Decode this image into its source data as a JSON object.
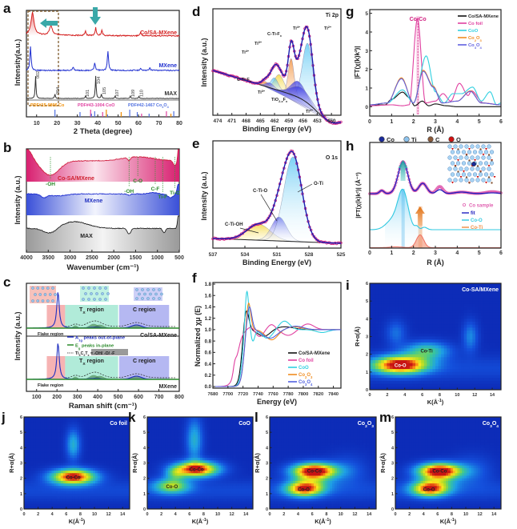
{
  "figure": {
    "panels": [
      "a",
      "b",
      "c",
      "d",
      "e",
      "f",
      "g",
      "h",
      "i",
      "j",
      "k",
      "l",
      "m"
    ]
  },
  "chart_data": [
    {
      "panel": "a",
      "type": "line",
      "title": "",
      "xlabel": "2 Theta (degree)",
      "ylabel": "Intensity(a.u.)",
      "xlim": [
        5,
        80
      ],
      "xticks": [
        "10",
        "20",
        "30",
        "40",
        "50",
        "60",
        "70",
        "80"
      ],
      "series": [
        {
          "name": "Co/SA-MXene",
          "color": "#d42020",
          "peaks": [
            [
              8,
              1.0
            ],
            [
              17,
              0.4
            ],
            [
              34,
              0.2
            ],
            [
              39,
              0.35
            ],
            [
              42,
              0.25
            ],
            [
              61,
              0.15
            ]
          ]
        },
        {
          "name": "MXene",
          "color": "#2030d0",
          "peaks": [
            [
              7,
              1.0
            ],
            [
              28,
              0.15
            ],
            [
              38.5,
              0.3
            ],
            [
              45,
              0.8
            ],
            [
              61,
              0.1
            ],
            [
              65.5,
              0.12
            ]
          ]
        },
        {
          "name": "MAX",
          "color": "#333333",
          "peaks": [
            [
              9.5,
              1.0
            ],
            [
              19,
              0.2
            ],
            [
              34,
              0.1
            ],
            [
              39,
              1.0
            ],
            [
              41.8,
              0.2
            ],
            [
              48.5,
              0.1
            ],
            [
              56,
              0.1
            ],
            [
              60.2,
              0.1
            ]
          ]
        }
      ],
      "hkl": [
        "002",
        "004",
        "101",
        "104",
        "105",
        "107",
        "109",
        "110"
      ],
      "references": [
        {
          "name": "PDF#15-0806 Co",
          "color": "#f08c00",
          "lines": [
            44.2,
            51.5,
            75.9
          ]
        },
        {
          "name": "PDF#43-1004 CoO",
          "color": "#e040a0",
          "lines": [
            36.5,
            42.4,
            61.5,
            73.7
          ]
        },
        {
          "name": "PDF#42-1467 Co3O4",
          "color": "#5070e0",
          "lines": [
            19,
            31.3,
            36.9,
            38.5,
            44.8,
            55.7,
            59.4,
            65.2,
            77.3
          ]
        }
      ]
    },
    {
      "panel": "b",
      "type": "area",
      "xlabel": "Wavenumber (cm⁻¹)",
      "ylabel": "Intensity (a.u.)",
      "xlim": [
        4000,
        500
      ],
      "xticks": [
        "4000",
        "3500",
        "3000",
        "2500",
        "2000",
        "1500",
        "1000",
        "500"
      ],
      "series": [
        {
          "name": "Co-SA/MXene",
          "color": "#d42060"
        },
        {
          "name": "MXene",
          "color": "#2040d0"
        },
        {
          "name": "MAX",
          "color": "#222222"
        }
      ],
      "annotations": [
        "-OH",
        "-OH",
        "C-O",
        "C-F",
        "Ti-F",
        "Ti-O"
      ]
    },
    {
      "panel": "c",
      "type": "line",
      "xlabel": "Raman shift (cm⁻¹)",
      "ylabel": "Intensity (a.u.)",
      "xlim": [
        50,
        800
      ],
      "xticks": [
        "100",
        "200",
        "300",
        "400",
        "500",
        "600",
        "700",
        "800"
      ],
      "series": [
        {
          "name": "Co/SA-MXene"
        },
        {
          "name": "MXene"
        }
      ],
      "regions": [
        "Flake region",
        "Tx region",
        "C region"
      ],
      "legend": [
        "A1g peaks out-of-plane",
        "Eg peaks in-plane",
        "Ti3C2Tx = -OH/ -O/ -F"
      ]
    },
    {
      "panel": "d",
      "type": "line",
      "title": "Ti 2p",
      "xlabel": "Binding Energy (eV)",
      "ylabel": "Intensity (a.u.)",
      "xlim": [
        475,
        448
      ],
      "xticks": [
        "474",
        "471",
        "468",
        "465",
        "462",
        "459",
        "456",
        "453",
        "450"
      ],
      "annotations": [
        "Ti4+",
        "Ti3+",
        "C-Ti-Fx",
        "Ti4+",
        "Ti2+",
        "C-Ti-Fx",
        "Ti3+",
        "TiO2-xFx",
        "Ti2+"
      ],
      "peaks": [
        455,
        458.5,
        461,
        464
      ]
    },
    {
      "panel": "e",
      "type": "line",
      "title": "O 1s",
      "xlabel": "Binding Energy (eV)",
      "ylabel": "Intensity (a.u.)",
      "xlim": [
        537,
        525
      ],
      "xticks": [
        "537",
        "534",
        "531",
        "528",
        "525"
      ],
      "annotations": [
        "C-Ti-OH",
        "C-Ti-O",
        "O-Ti"
      ],
      "peaks": [
        533,
        531,
        529.5
      ]
    },
    {
      "panel": "f",
      "type": "line",
      "xlabel": "Energy (eV)",
      "ylabel": "Normalized χμ (E)",
      "xlim": [
        7680,
        7850
      ],
      "ylim": [
        0,
        1.8
      ],
      "xticks": [
        "7680",
        "7700",
        "7720",
        "7740",
        "7760",
        "7780",
        "7800",
        "7820",
        "7840"
      ],
      "yticks": [
        "0.0",
        "0.2",
        "0.4",
        "0.6",
        "0.8",
        "1.0",
        "1.2",
        "1.4",
        "1.6",
        "1.8"
      ],
      "series": [
        {
          "name": "Co/SA-MXene",
          "color": "#111111",
          "peak": [
            7724,
            1.38
          ]
        },
        {
          "name": "Co foil",
          "color": "#e040a0",
          "peak": [
            7730,
            1.0
          ]
        },
        {
          "name": "CoO",
          "color": "#30d0e0",
          "peak": [
            7725,
            1.7
          ]
        },
        {
          "name": "Co2O3",
          "color": "#f08c20",
          "peak": [
            7727,
            1.5
          ]
        },
        {
          "name": "Co3O4",
          "color": "#5060e0",
          "peak": [
            7728,
            1.4
          ]
        }
      ]
    },
    {
      "panel": "g",
      "type": "line",
      "xlabel": "R (Å)",
      "ylabel": "|FT(χ(k)k²)|",
      "xlim": [
        0,
        6
      ],
      "ylim": [
        -0.5,
        5.2
      ],
      "xticks": [
        "0",
        "1",
        "2",
        "3",
        "4",
        "5",
        "6"
      ],
      "yticks": [
        "0",
        "1",
        "2",
        "3",
        "4",
        "5"
      ],
      "annotation": "Co-Co",
      "series": [
        {
          "name": "Co/SA-MXene",
          "color": "#111111",
          "points": [
            [
              0,
              0.1
            ],
            [
              0.7,
              0.1
            ],
            [
              1,
              0.4
            ],
            [
              1.5,
              0.78
            ],
            [
              1.8,
              0.5
            ],
            [
              2.05,
              0.05
            ],
            [
              2.4,
              0.3
            ],
            [
              2.7,
              0.05
            ],
            [
              3,
              0.15
            ],
            [
              3.5,
              0.05
            ],
            [
              4,
              0
            ],
            [
              6,
              0
            ]
          ]
        },
        {
          "name": "Co foil",
          "color": "#e040a0",
          "points": [
            [
              0,
              0.05
            ],
            [
              1,
              0.1
            ],
            [
              1.5,
              0.05
            ],
            [
              1.8,
              0.1
            ],
            [
              2.18,
              4.7
            ],
            [
              2.55,
              0.2
            ],
            [
              3,
              0.3
            ],
            [
              3.35,
              0.7
            ],
            [
              3.7,
              0.3
            ],
            [
              4.1,
              1.25
            ],
            [
              4.5,
              0.6
            ],
            [
              4.65,
              0.85
            ],
            [
              5.2,
              0.2
            ],
            [
              6,
              0.1
            ]
          ]
        },
        {
          "name": "CoO",
          "color": "#30d0e0",
          "points": [
            [
              0,
              0.1
            ],
            [
              0.8,
              0.2
            ],
            [
              1.5,
              0.9
            ],
            [
              2,
              0.2
            ],
            [
              2.58,
              2.72
            ],
            [
              3,
              0.8
            ],
            [
              3.4,
              0.2
            ],
            [
              3.8,
              0.7
            ],
            [
              4.2,
              0.7
            ],
            [
              4.7,
              1.05
            ],
            [
              5.1,
              0.3
            ],
            [
              5.5,
              0.8
            ],
            [
              5.8,
              0.1
            ],
            [
              6,
              0.2
            ]
          ]
        },
        {
          "name": "Co2O3",
          "color": "#f08c20",
          "points": [
            [
              0,
              0.1
            ],
            [
              0.8,
              0.2
            ],
            [
              1.45,
              1.55
            ],
            [
              2,
              0.2
            ],
            [
              2.45,
              1.95
            ],
            [
              2.9,
              1.1
            ],
            [
              3.3,
              0.2
            ],
            [
              4,
              0.3
            ],
            [
              4.6,
              0.85
            ],
            [
              5.1,
              0.2
            ],
            [
              6,
              0.1
            ]
          ]
        },
        {
          "name": "Co3O4",
          "color": "#6060e0",
          "points": [
            [
              0,
              0.1
            ],
            [
              0.8,
              0.2
            ],
            [
              1.45,
              1.5
            ],
            [
              2,
              0.2
            ],
            [
              2.45,
              1.9
            ],
            [
              2.9,
              1.05
            ],
            [
              3.3,
              0.2
            ],
            [
              4,
              0.3
            ],
            [
              4.6,
              0.82
            ],
            [
              5.1,
              0.2
            ],
            [
              6,
              0.1
            ]
          ]
        }
      ]
    },
    {
      "panel": "h",
      "type": "line",
      "xlabel": "R (Å)",
      "ylabel": "|FT(χ(k)k²)| (Å⁻³)",
      "xlim": [
        0,
        6
      ],
      "xticks": [
        "0",
        "1",
        "2",
        "3",
        "4",
        "5",
        "6"
      ],
      "legend_atoms": [
        {
          "name": "Co",
          "color": "#1a2a9a"
        },
        {
          "name": "Ti",
          "color": "#8ec4ee"
        },
        {
          "name": "C",
          "color": "#8a5a3a"
        },
        {
          "name": "O",
          "color": "#d01010"
        }
      ],
      "series": [
        {
          "name": "Co sample",
          "color": "#e060b0"
        },
        {
          "name": "fit",
          "color": "#2020c0"
        },
        {
          "name": "Co-O",
          "color": "#30c8e0"
        },
        {
          "name": "Co-Ti",
          "color": "#f08c40"
        }
      ]
    },
    {
      "panel": "i",
      "type": "heatmap",
      "title": "Co-SA/MXene",
      "xlabel": "K(Å⁻¹)",
      "ylabel": "R+α(Å)",
      "xlim": [
        0,
        15
      ],
      "ylim": [
        0,
        6
      ],
      "xticks": [
        "0",
        "2",
        "4",
        "6",
        "8",
        "10",
        "12",
        "14"
      ],
      "yticks": [
        "0",
        "1",
        "2",
        "3",
        "4",
        "5",
        "6"
      ],
      "maxima": [
        {
          "label": "Co-O",
          "k": 3.5,
          "r": 1.4,
          "v": 1.0
        },
        {
          "label": "Co-Ti",
          "k": 6.5,
          "r": 2.2,
          "v": 0.45
        }
      ]
    },
    {
      "panel": "j",
      "type": "heatmap",
      "title": "Co foil",
      "xlabel": "K(Å⁻¹)",
      "ylabel": "R+α(Å)",
      "xlim": [
        0,
        15
      ],
      "ylim": [
        0,
        6
      ],
      "xticks": [
        "0",
        "2",
        "4",
        "6",
        "8",
        "10",
        "12",
        "14"
      ],
      "yticks": [
        "0",
        "1",
        "2",
        "3",
        "4",
        "5",
        "6"
      ],
      "maxima": [
        {
          "label": "Co-Co",
          "k": 7.0,
          "r": 2.1,
          "v": 1.0
        }
      ]
    },
    {
      "panel": "k",
      "type": "heatmap",
      "title": "CoO",
      "xlabel": "K(Å⁻¹)",
      "ylabel": "R+α(Å)",
      "xlim": [
        0,
        15
      ],
      "ylim": [
        0,
        6
      ],
      "xticks": [
        "0",
        "2",
        "4",
        "6",
        "8",
        "10",
        "12",
        "14"
      ],
      "yticks": [
        "0",
        "1",
        "2",
        "3",
        "4",
        "5",
        "6"
      ],
      "maxima": [
        {
          "label": "Co-Co",
          "k": 7.0,
          "r": 2.6,
          "v": 1.0
        },
        {
          "label": "Co-O",
          "k": 3.5,
          "r": 1.5,
          "v": 0.55
        }
      ]
    },
    {
      "panel": "l",
      "type": "heatmap",
      "title": "Co2O3",
      "xlabel": "K(Å⁻¹)",
      "ylabel": "R+α(Å)",
      "xlim": [
        0,
        15
      ],
      "ylim": [
        0,
        6
      ],
      "xticks": [
        "0",
        "2",
        "4",
        "6",
        "8",
        "10",
        "12",
        "14"
      ],
      "yticks": [
        "0",
        "1",
        "2",
        "3",
        "4",
        "5",
        "6"
      ],
      "maxima": [
        {
          "label": "Co-Co",
          "k": 6.3,
          "r": 2.5,
          "v": 1.0
        },
        {
          "label": "Co-O",
          "k": 4.8,
          "r": 1.3,
          "v": 0.75
        }
      ]
    },
    {
      "panel": "m",
      "type": "heatmap",
      "title": "Co3O4",
      "xlabel": "K(Å⁻¹)",
      "ylabel": "R+α(Å)",
      "xlim": [
        0,
        15
      ],
      "ylim": [
        0,
        6
      ],
      "xticks": [
        "0",
        "2",
        "4",
        "6",
        "8",
        "10",
        "12",
        "14"
      ],
      "yticks": [
        "0",
        "1",
        "2",
        "3",
        "4",
        "5",
        "6"
      ],
      "maxima": [
        {
          "label": "Co-Co",
          "k": 6.3,
          "r": 2.5,
          "v": 1.0
        },
        {
          "label": "Co-O",
          "k": 4.8,
          "r": 1.3,
          "v": 0.75
        }
      ]
    }
  ]
}
